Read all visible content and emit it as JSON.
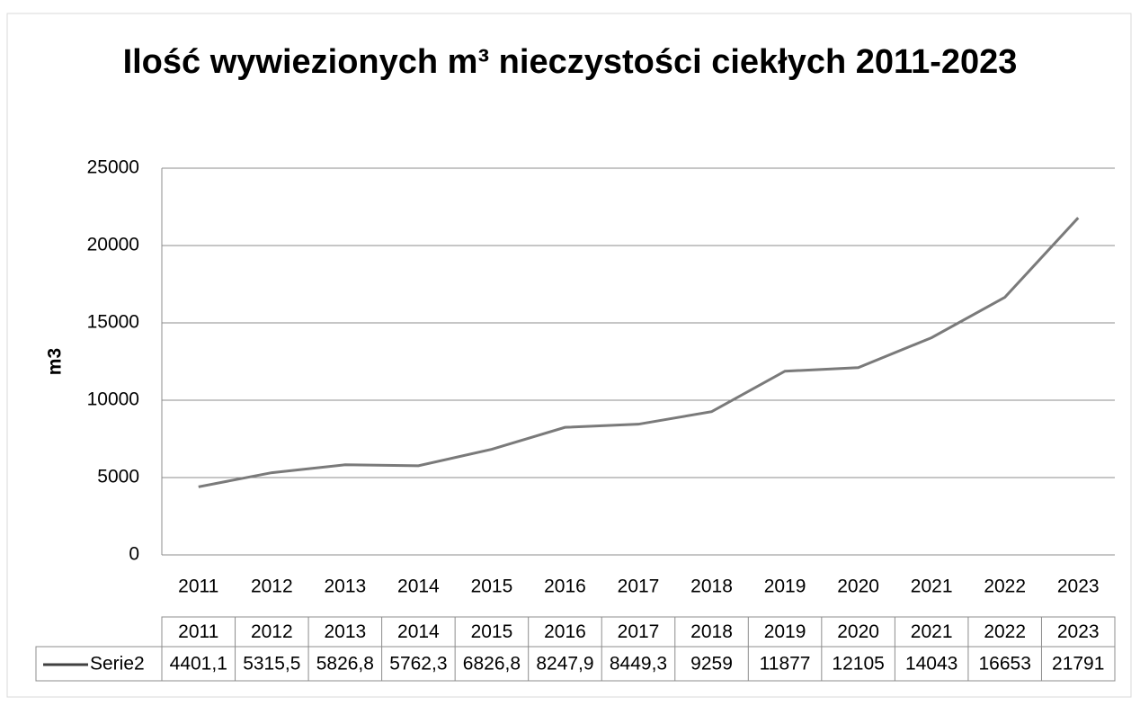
{
  "chart_data": {
    "type": "line",
    "title": "Ilość wywiezionych m³ nieczystości ciekłych 2011-2023",
    "y_label": "m3",
    "categories": [
      "2011",
      "2012",
      "2013",
      "2014",
      "2015",
      "2016",
      "2017",
      "2018",
      "2019",
      "2020",
      "2021",
      "2022",
      "2023"
    ],
    "series": [
      {
        "name": "Serie2",
        "color": "#7a7a7a",
        "values": [
          4401.1,
          5315.5,
          5826.8,
          5762.3,
          6826.8,
          8247.9,
          8449.3,
          9259,
          11877,
          12105,
          14043,
          16653,
          21791
        ],
        "value_labels": [
          "4401,1",
          "5315,5",
          "5826,8",
          "5762,3",
          "6826,8",
          "8247,9",
          "8449,3",
          "9259",
          "11877",
          "12105",
          "14043",
          "16653",
          "21791"
        ]
      }
    ],
    "ylim": [
      0,
      25000
    ],
    "yticks": [
      0,
      5000,
      10000,
      15000,
      20000,
      25000
    ],
    "grid": true,
    "data_table": true
  }
}
